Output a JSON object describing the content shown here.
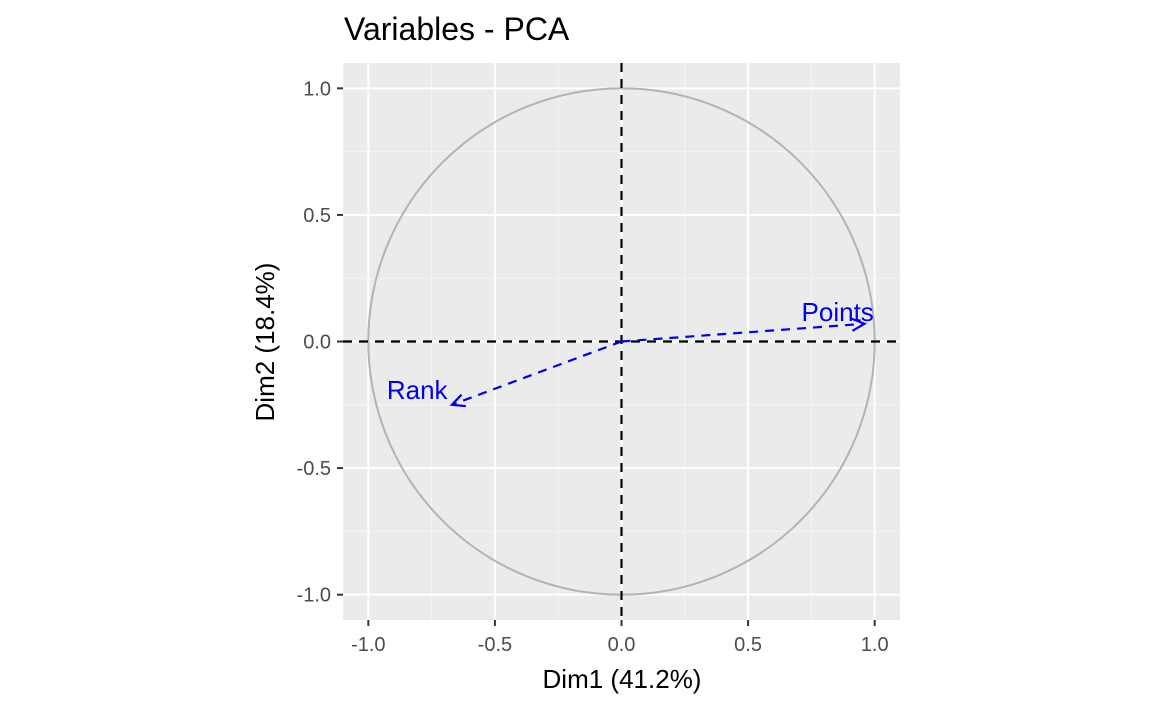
{
  "chart_data": {
    "type": "scatter",
    "title": "Variables - PCA",
    "xlabel": "Dim1 (41.2%)",
    "ylabel": "Dim2 (18.4%)",
    "xlim": [
      -1.1,
      1.1
    ],
    "ylim": [
      -1.1,
      1.1
    ],
    "x_ticks": [
      -1.0,
      -0.5,
      0.0,
      0.5,
      1.0
    ],
    "y_ticks": [
      -1.0,
      -0.5,
      0.0,
      0.5,
      1.0
    ],
    "x_tick_labels": [
      "-1.0",
      "-0.5",
      "0.0",
      "0.5",
      "1.0"
    ],
    "y_tick_labels": [
      "-1.0",
      "-0.5",
      "0.0",
      "0.5",
      "1.0"
    ],
    "grid": true,
    "correlation_circle": {
      "radius": 1.0,
      "color": "#b3b3b3"
    },
    "reference_lines": [
      {
        "axis": "x",
        "value": 0.0,
        "style": "dashed",
        "color": "#000000"
      },
      {
        "axis": "y",
        "value": 0.0,
        "style": "dashed",
        "color": "#000000"
      }
    ],
    "variables": [
      {
        "name": "Points",
        "x": 0.96,
        "y": 0.07
      },
      {
        "name": "Rank",
        "x": -0.67,
        "y": -0.25
      }
    ],
    "arrow_color": "#0000ee",
    "panel_background": "#ebebeb"
  }
}
